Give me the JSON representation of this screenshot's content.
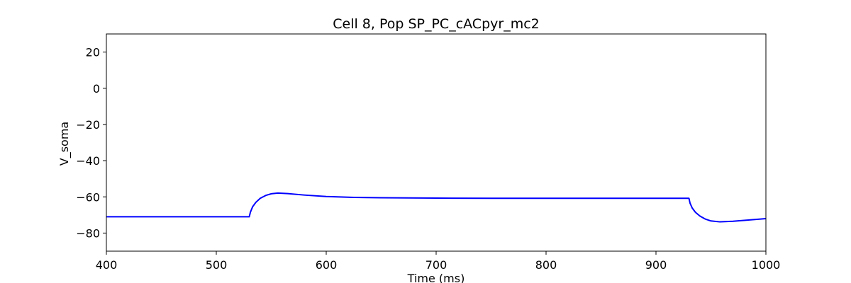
{
  "chart_data": {
    "type": "line",
    "title": "Cell 8, Pop SP_PC_cACpyr_mc2",
    "xlabel": "Time (ms)",
    "ylabel": "V_soma",
    "xlim": [
      400,
      1000
    ],
    "ylim": [
      -90,
      30
    ],
    "xticks": [
      400,
      500,
      600,
      700,
      800,
      900,
      1000
    ],
    "yticks": [
      -80,
      -60,
      -40,
      -20,
      0,
      20
    ],
    "grid": false,
    "line_color": "#0000ff",
    "series": [
      {
        "x": [
          400,
          450,
          500,
          530,
          531,
          533,
          536,
          540,
          545,
          550,
          556,
          565,
          580,
          600,
          625,
          650,
          700,
          750,
          800,
          850,
          900,
          930,
          931,
          933,
          936,
          940,
          945,
          950,
          958,
          970,
          980,
          990,
          1000
        ],
        "y": [
          -71,
          -71,
          -71,
          -71,
          -68.5,
          -65.5,
          -63,
          -60.8,
          -59.2,
          -58.3,
          -57.9,
          -58.2,
          -59.0,
          -59.8,
          -60.3,
          -60.5,
          -60.7,
          -60.8,
          -60.8,
          -60.8,
          -60.8,
          -60.8,
          -63.5,
          -66.2,
          -68.6,
          -70.6,
          -72.3,
          -73.3,
          -73.8,
          -73.5,
          -73.0,
          -72.5,
          -72.0
        ]
      }
    ]
  }
}
